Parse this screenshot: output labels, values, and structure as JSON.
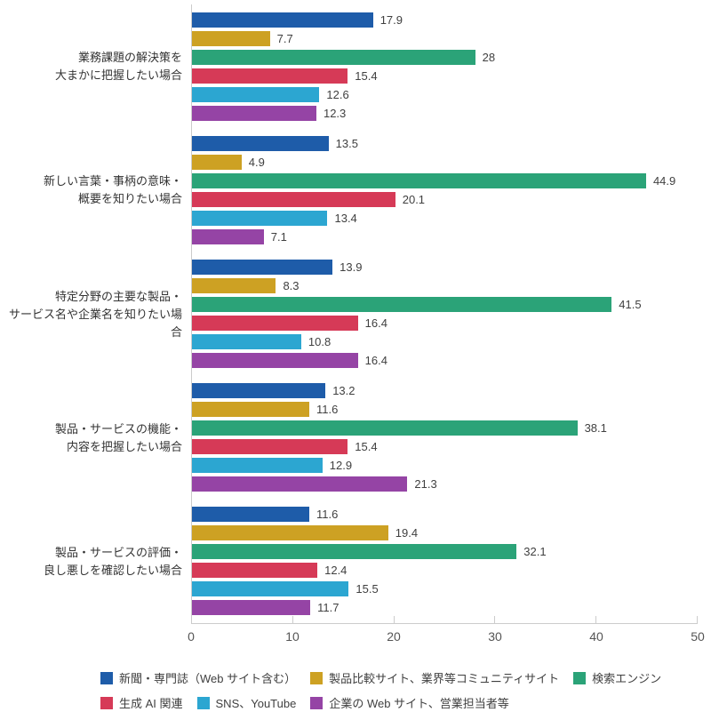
{
  "chart_data": {
    "type": "bar",
    "orientation": "horizontal",
    "title": "",
    "xlabel": "",
    "ylabel": "",
    "xlim": [
      0,
      50
    ],
    "x_ticks": [
      0,
      10,
      20,
      30,
      40,
      50
    ],
    "grid": false,
    "value_labels": true,
    "legend_position": "bottom",
    "legend_rows": [
      [
        0,
        1,
        2
      ],
      [
        3,
        4,
        5
      ]
    ],
    "categories": [
      {
        "label_lines": [
          "業務課題の解決策を",
          "大まかに把握したい場合"
        ]
      },
      {
        "label_lines": [
          "新しい言葉・事柄の意味・",
          "概要を知りたい場合"
        ]
      },
      {
        "label_lines": [
          "特定分野の主要な製品・",
          "サービス名や企業名を知りたい場合"
        ]
      },
      {
        "label_lines": [
          "製品・サービスの機能・",
          "内容を把握したい場合"
        ]
      },
      {
        "label_lines": [
          "製品・サービスの評価・",
          "良し悪しを確認したい場合"
        ]
      }
    ],
    "series": [
      {
        "name": "新聞・専門誌（Web サイト含む）",
        "color": "#1e5ca9",
        "values": [
          17.9,
          13.5,
          13.9,
          13.2,
          11.6
        ]
      },
      {
        "name": "製品比較サイト、業界等コミュニティサイト",
        "color": "#cda123",
        "values": [
          7.7,
          4.9,
          8.3,
          11.6,
          19.4
        ]
      },
      {
        "name": "検索エンジン",
        "color": "#2ba378",
        "values": [
          28,
          44.9,
          41.5,
          38.1,
          32.1
        ]
      },
      {
        "name": "生成 AI 関連",
        "color": "#d63a57",
        "values": [
          15.4,
          20.1,
          16.4,
          15.4,
          12.4
        ]
      },
      {
        "name": "SNS、YouTube",
        "color": "#2ca6d1",
        "values": [
          12.6,
          13.4,
          10.8,
          12.9,
          15.5
        ]
      },
      {
        "name": "企業の Web サイト、営業担当者等",
        "color": "#9544a5",
        "values": [
          12.3,
          7.1,
          16.4,
          21.3,
          11.7
        ]
      }
    ],
    "colors": {
      "axis_line": "#cccccc",
      "axis_label": "#555555",
      "value_label": "#404040",
      "category_label": "#333333",
      "legend_label": "#404040",
      "background": "#ffffff"
    }
  }
}
